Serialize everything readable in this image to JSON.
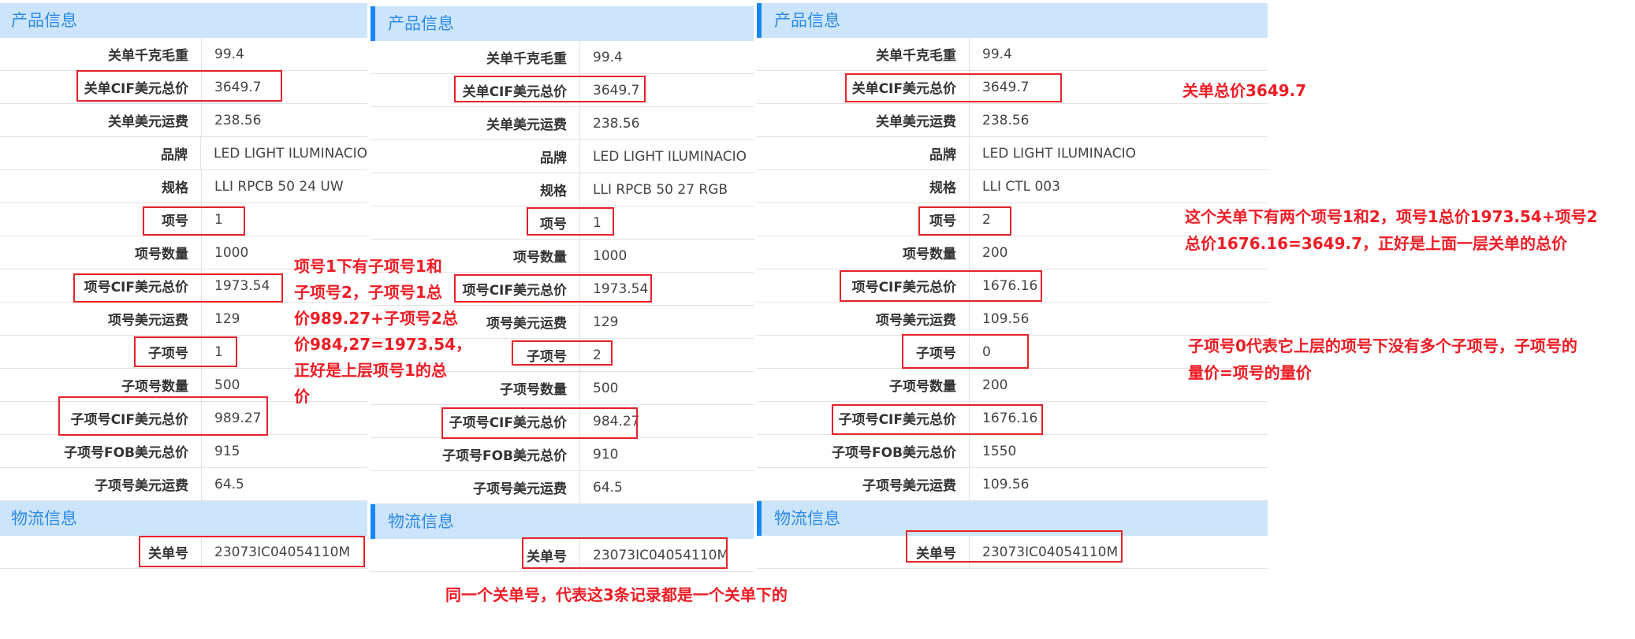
{
  "colors": {
    "header_bg": "#cce5fb",
    "header_text": "#2f8ae6",
    "accent_bar": "#1a86f0",
    "annotation_red": "#ee1c25"
  },
  "panels": [
    {
      "section1": "产品信息",
      "section2": "物流信息",
      "rows": [
        [
          "关单千克毛重",
          "99.4"
        ],
        [
          "关单CIF美元总价",
          "3649.7"
        ],
        [
          "关单美元运费",
          "238.56"
        ],
        [
          "品牌",
          "LED LIGHT ILUMINACIO"
        ],
        [
          "规格",
          "LLI RPCB 50 24 UW"
        ],
        [
          "项号",
          "1"
        ],
        [
          "项号数量",
          "1000"
        ],
        [
          "项号CIF美元总价",
          "1973.54"
        ],
        [
          "项号美元运费",
          "129"
        ],
        [
          "子项号",
          "1"
        ],
        [
          "子项号数量",
          "500"
        ],
        [
          "子项号CIF美元总价",
          "989.27"
        ],
        [
          "子项号FOB美元总价",
          "915"
        ],
        [
          "子项号美元运费",
          "64.5"
        ]
      ],
      "logistics": [
        [
          "关单号",
          "23073IC04054110M"
        ]
      ]
    },
    {
      "section1": "产品信息",
      "section2": "物流信息",
      "rows": [
        [
          "关单千克毛重",
          "99.4"
        ],
        [
          "关单CIF美元总价",
          "3649.7"
        ],
        [
          "关单美元运费",
          "238.56"
        ],
        [
          "品牌",
          "LED LIGHT ILUMINACIO"
        ],
        [
          "规格",
          "LLI RPCB 50 27 RGB"
        ],
        [
          "项号",
          "1"
        ],
        [
          "项号数量",
          "1000"
        ],
        [
          "项号CIF美元总价",
          "1973.54"
        ],
        [
          "项号美元运费",
          "129"
        ],
        [
          "子项号",
          "2"
        ],
        [
          "子项号数量",
          "500"
        ],
        [
          "子项号CIF美元总价",
          "984.27"
        ],
        [
          "子项号FOB美元总价",
          "910"
        ],
        [
          "子项号美元运费",
          "64.5"
        ]
      ],
      "logistics": [
        [
          "关单号",
          "23073IC04054110M"
        ]
      ]
    },
    {
      "section1": "产品信息",
      "section2": "物流信息",
      "rows": [
        [
          "关单千克毛重",
          "99.4"
        ],
        [
          "关单CIF美元总价",
          "3649.7"
        ],
        [
          "关单美元运费",
          "238.56"
        ],
        [
          "品牌",
          "LED LIGHT ILUMINACIO"
        ],
        [
          "规格",
          "LLI CTL 003"
        ],
        [
          "项号",
          "2"
        ],
        [
          "项号数量",
          "200"
        ],
        [
          "项号CIF美元总价",
          "1676.16"
        ],
        [
          "项号美元运费",
          "109.56"
        ],
        [
          "子项号",
          "0"
        ],
        [
          "子项号数量",
          "200"
        ],
        [
          "子项号CIF美元总价",
          "1676.16"
        ],
        [
          "子项号FOB美元总价",
          "1550"
        ],
        [
          "子项号美元运费",
          "109.56"
        ]
      ],
      "logistics": [
        [
          "关单号",
          "23073IC04054110M"
        ]
      ]
    }
  ],
  "annotations": {
    "item1_note": [
      "项号1下有子项号1和",
      "子项号2，子项号1总",
      "价989.27+子项号2总",
      "价984,27=1973.54，",
      "正好是上层项号1的总",
      "价"
    ],
    "declaration_total": [
      "关单总价3649.7"
    ],
    "items_sum_note": [
      "这个关单下有两个项号1和2，项号1总价1973.54+项号2",
      "总价1676.16=3649.7，正好是上面一层关单的总价"
    ],
    "subitem0_note": [
      "子项号0代表它上层的项号下没有多个子项号，子项号的",
      "量价=项号的量价"
    ],
    "same_declaration_note": [
      "同一个关单号，代表这3条记录都是一个关单下的"
    ]
  }
}
